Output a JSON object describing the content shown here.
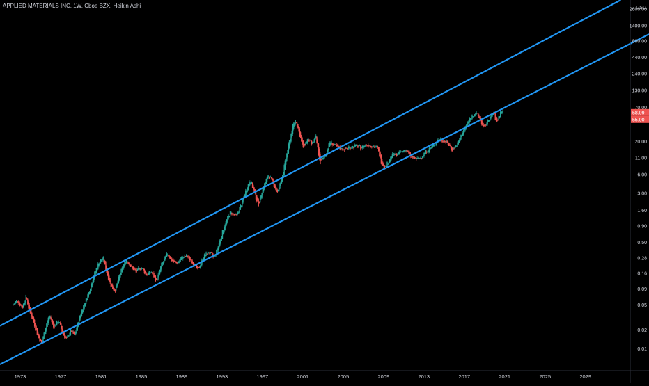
{
  "header": {
    "symbol": "APPLIED MATERIALS INC",
    "interval": "1W",
    "exchange": "Cboe BZX",
    "chart_style": "Heikin Ashi"
  },
  "colors": {
    "background": "#000000",
    "up": "#26a69a",
    "down": "#ef5350",
    "channel": "#2196f3",
    "text": "#d1d4dc",
    "axis": "#2a2e39",
    "price_badge": "#ef5350"
  },
  "chart_data": {
    "type": "candlestick",
    "title": "APPLIED MATERIALS INC, 1W, Cboe BZX, Heikin Ashi",
    "y_scale": "log",
    "y_unit": "USD",
    "y_ticks": [
      "2600.00",
      "1400.00",
      "800.00",
      "440.00",
      "240.00",
      "130.00",
      "70.00",
      "20.00",
      "11.00",
      "6.00",
      "3.00",
      "1.60",
      "0.90",
      "0.50",
      "0.28",
      "0.16",
      "0.09",
      "0.05",
      "0.02",
      "0.01"
    ],
    "x_ticks": [
      "1973",
      "1977",
      "1981",
      "1985",
      "1989",
      "1993",
      "1997",
      "2001",
      "2005",
      "2009",
      "2013",
      "2017",
      "2021",
      "2025",
      "2029"
    ],
    "xlim": [
      1971.0,
      2035.3
    ],
    "ylim": [
      0.0045,
      3600
    ],
    "price_path": [
      [
        1972.3,
        0.05
      ],
      [
        1972.7,
        0.06
      ],
      [
        1973.2,
        0.045
      ],
      [
        1973.6,
        0.07
      ],
      [
        1973.9,
        0.04
      ],
      [
        1974.3,
        0.028
      ],
      [
        1974.7,
        0.017
      ],
      [
        1975.1,
        0.012
      ],
      [
        1975.6,
        0.025
      ],
      [
        1975.9,
        0.035
      ],
      [
        1976.3,
        0.022
      ],
      [
        1976.8,
        0.028
      ],
      [
        1977.2,
        0.018
      ],
      [
        1977.6,
        0.014
      ],
      [
        1978.0,
        0.02
      ],
      [
        1978.4,
        0.016
      ],
      [
        1978.8,
        0.03
      ],
      [
        1979.3,
        0.05
      ],
      [
        1979.8,
        0.08
      ],
      [
        1980.3,
        0.15
      ],
      [
        1980.8,
        0.24
      ],
      [
        1981.2,
        0.28
      ],
      [
        1981.6,
        0.16
      ],
      [
        1982.0,
        0.1
      ],
      [
        1982.4,
        0.085
      ],
      [
        1982.9,
        0.16
      ],
      [
        1983.5,
        0.27
      ],
      [
        1984.0,
        0.2
      ],
      [
        1984.5,
        0.17
      ],
      [
        1985.0,
        0.2
      ],
      [
        1985.5,
        0.15
      ],
      [
        1986.0,
        0.17
      ],
      [
        1986.5,
        0.12
      ],
      [
        1987.0,
        0.22
      ],
      [
        1987.6,
        0.33
      ],
      [
        1988.0,
        0.26
      ],
      [
        1988.5,
        0.23
      ],
      [
        1989.0,
        0.28
      ],
      [
        1989.5,
        0.3
      ],
      [
        1990.0,
        0.25
      ],
      [
        1990.6,
        0.18
      ],
      [
        1991.2,
        0.3
      ],
      [
        1991.7,
        0.35
      ],
      [
        1992.2,
        0.28
      ],
      [
        1992.6,
        0.42
      ],
      [
        1993.2,
        0.9
      ],
      [
        1993.8,
        1.5
      ],
      [
        1994.4,
        1.3
      ],
      [
        1994.9,
        2.0
      ],
      [
        1995.4,
        3.5
      ],
      [
        1995.8,
        5.0
      ],
      [
        1996.2,
        3.0
      ],
      [
        1996.6,
        2.0
      ],
      [
        1997.0,
        3.5
      ],
      [
        1997.6,
        6.0
      ],
      [
        1998.0,
        4.5
      ],
      [
        1998.5,
        3.0
      ],
      [
        1999.0,
        6.0
      ],
      [
        1999.5,
        15.0
      ],
      [
        2000.0,
        35.0
      ],
      [
        2000.3,
        45.0
      ],
      [
        2000.7,
        25.0
      ],
      [
        2001.0,
        16.0
      ],
      [
        2001.5,
        22.0
      ],
      [
        2001.9,
        18.0
      ],
      [
        2002.3,
        24.0
      ],
      [
        2002.7,
        9.0
      ],
      [
        2003.2,
        12.0
      ],
      [
        2003.7,
        20.0
      ],
      [
        2004.2,
        17.0
      ],
      [
        2004.8,
        15.0
      ],
      [
        2005.5,
        16.0
      ],
      [
        2006.2,
        17.0
      ],
      [
        2006.8,
        16.0
      ],
      [
        2007.3,
        18.0
      ],
      [
        2007.9,
        17.0
      ],
      [
        2008.4,
        16.0
      ],
      [
        2008.8,
        9.0
      ],
      [
        2009.2,
        8.0
      ],
      [
        2009.8,
        12.0
      ],
      [
        2010.5,
        13.0
      ],
      [
        2011.2,
        15.0
      ],
      [
        2011.8,
        11.0
      ],
      [
        2012.5,
        10.5
      ],
      [
        2013.2,
        14.0
      ],
      [
        2013.9,
        17.0
      ],
      [
        2014.5,
        22.0
      ],
      [
        2015.2,
        20.0
      ],
      [
        2015.8,
        15.0
      ],
      [
        2016.3,
        18.0
      ],
      [
        2016.9,
        30.0
      ],
      [
        2017.5,
        45.0
      ],
      [
        2018.1,
        58.0
      ],
      [
        2018.6,
        45.0
      ],
      [
        2018.9,
        32.0
      ],
      [
        2019.4,
        45.0
      ],
      [
        2019.9,
        58.0
      ],
      [
        2020.2,
        40.0
      ],
      [
        2020.6,
        60.0
      ],
      [
        2020.9,
        64.0
      ]
    ],
    "channel_lines": [
      {
        "name": "upper",
        "points": [
          [
            1971.0,
            0.0233
          ],
          [
            2032.5,
            3600
          ]
        ]
      },
      {
        "name": "lower",
        "points": [
          [
            1971.0,
            0.00566
          ],
          [
            2035.3,
            1030
          ]
        ]
      }
    ],
    "price_badges": [
      {
        "label": "58.09",
        "value": 58.09
      },
      {
        "label": "55.00",
        "value": 55.0
      }
    ],
    "axis_unit_label": "USD"
  }
}
